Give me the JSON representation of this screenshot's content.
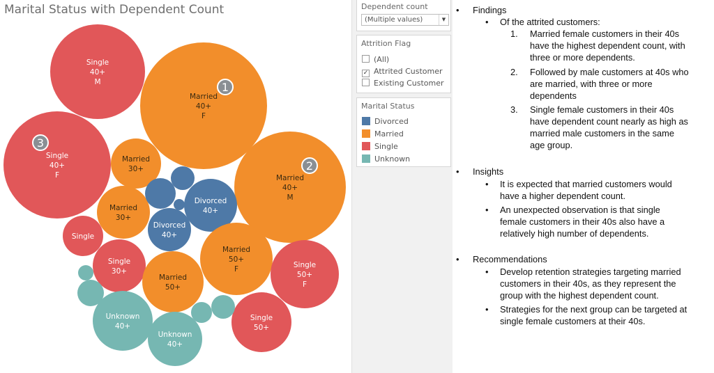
{
  "title": "Marital Status with Dependent Count",
  "colors": {
    "Divorced": "#4e79a7",
    "Married": "#f28e2b",
    "Single": "#e15759",
    "Unknown": "#76b7b2"
  },
  "chart_data": {
    "type": "packed-bubble",
    "title": "Marital Status with Dependent Count",
    "color_field": "Marital Status",
    "bubbles": [
      {
        "marital": "Married",
        "age": "40+",
        "gender": "F",
        "label": "Married\n40+\nF",
        "badge": "1"
      },
      {
        "marital": "Married",
        "age": "40+",
        "gender": "M",
        "label": "Married\n40+\nM",
        "badge": "2"
      },
      {
        "marital": "Single",
        "age": "40+",
        "gender": "F",
        "label": "Single\n40+\nF",
        "badge": "3"
      },
      {
        "marital": "Single",
        "age": "40+",
        "gender": "M",
        "label": "Single\n40+\nM"
      },
      {
        "marital": "Married",
        "age": "30+",
        "label": "Married\n30+"
      },
      {
        "marital": "Married",
        "age": "30+",
        "label": "Married\n30+"
      },
      {
        "marital": "Divorced",
        "age": "40+",
        "label": "Divorced\n40+"
      },
      {
        "marital": "Divorced",
        "age": "40+",
        "label": "Divorced\n40+"
      },
      {
        "marital": "Divorced",
        "label": ""
      },
      {
        "marital": "Divorced",
        "label": ""
      },
      {
        "marital": "Divorced",
        "label": ""
      },
      {
        "marital": "Single",
        "label": "Single"
      },
      {
        "marital": "Single",
        "age": "30+",
        "label": "Single\n30+"
      },
      {
        "marital": "Married",
        "age": "50+",
        "label": "Married\n50+"
      },
      {
        "marital": "Married",
        "age": "50+",
        "gender": "F",
        "label": "Married\n50+\nF"
      },
      {
        "marital": "Single",
        "age": "50+",
        "gender": "F",
        "label": "Single\n50+\nF"
      },
      {
        "marital": "Single",
        "age": "50+",
        "label": "Single\n50+"
      },
      {
        "marital": "Unknown",
        "age": "40+",
        "label": "Unknown\n40+"
      },
      {
        "marital": "Unknown",
        "age": "40+",
        "label": "Unknown\n40+"
      },
      {
        "marital": "Unknown",
        "label": ""
      },
      {
        "marital": "Unknown",
        "label": ""
      },
      {
        "marital": "Unknown",
        "label": ""
      },
      {
        "marital": "Unknown",
        "label": ""
      }
    ]
  },
  "filters": {
    "dependent_count": {
      "title": "Dependent count",
      "value": "(Multiple values)"
    },
    "attrition_flag": {
      "title": "Attrition Flag",
      "options": [
        {
          "label": "(All)",
          "checked": false
        },
        {
          "label": "Attrited Customer",
          "checked": true
        },
        {
          "label": "Existing Customer",
          "checked": false
        }
      ]
    },
    "legend": {
      "title": "Marital Status",
      "items": [
        "Divorced",
        "Married",
        "Single",
        "Unknown"
      ]
    }
  },
  "notes": {
    "findings": {
      "heading": "Findings",
      "intro": "Of the attrited customers:",
      "items": [
        {
          "num": "1.",
          "lines": [
            "Married female customers in their 40s",
            "have the highest dependent count, with",
            "three or more dependents."
          ]
        },
        {
          "num": "2.",
          "lines": [
            "Followed by male customers at 40s who",
            "are married, with three or more",
            "dependents"
          ]
        },
        {
          "num": "3.",
          "lines": [
            "Single female customers in their 40s",
            "have dependent count nearly as high as",
            "married male customers in the same",
            "age group."
          ]
        }
      ]
    },
    "insights": {
      "heading": "Insights",
      "items": [
        [
          "It is expected that married customers would",
          "have a higher dependent count."
        ],
        [
          "An unexpected observation is that single",
          "female customers in their 40s also have a",
          "relatively high number of dependents."
        ]
      ]
    },
    "recommendations": {
      "heading": "Recommendations",
      "items": [
        [
          "Develop retention strategies targeting married",
          "customers in their 40s, as they represent the",
          "group with the highest dependent count."
        ],
        [
          "Strategies for the next group can be targeted at",
          "single female customers at their 40s."
        ]
      ]
    }
  }
}
